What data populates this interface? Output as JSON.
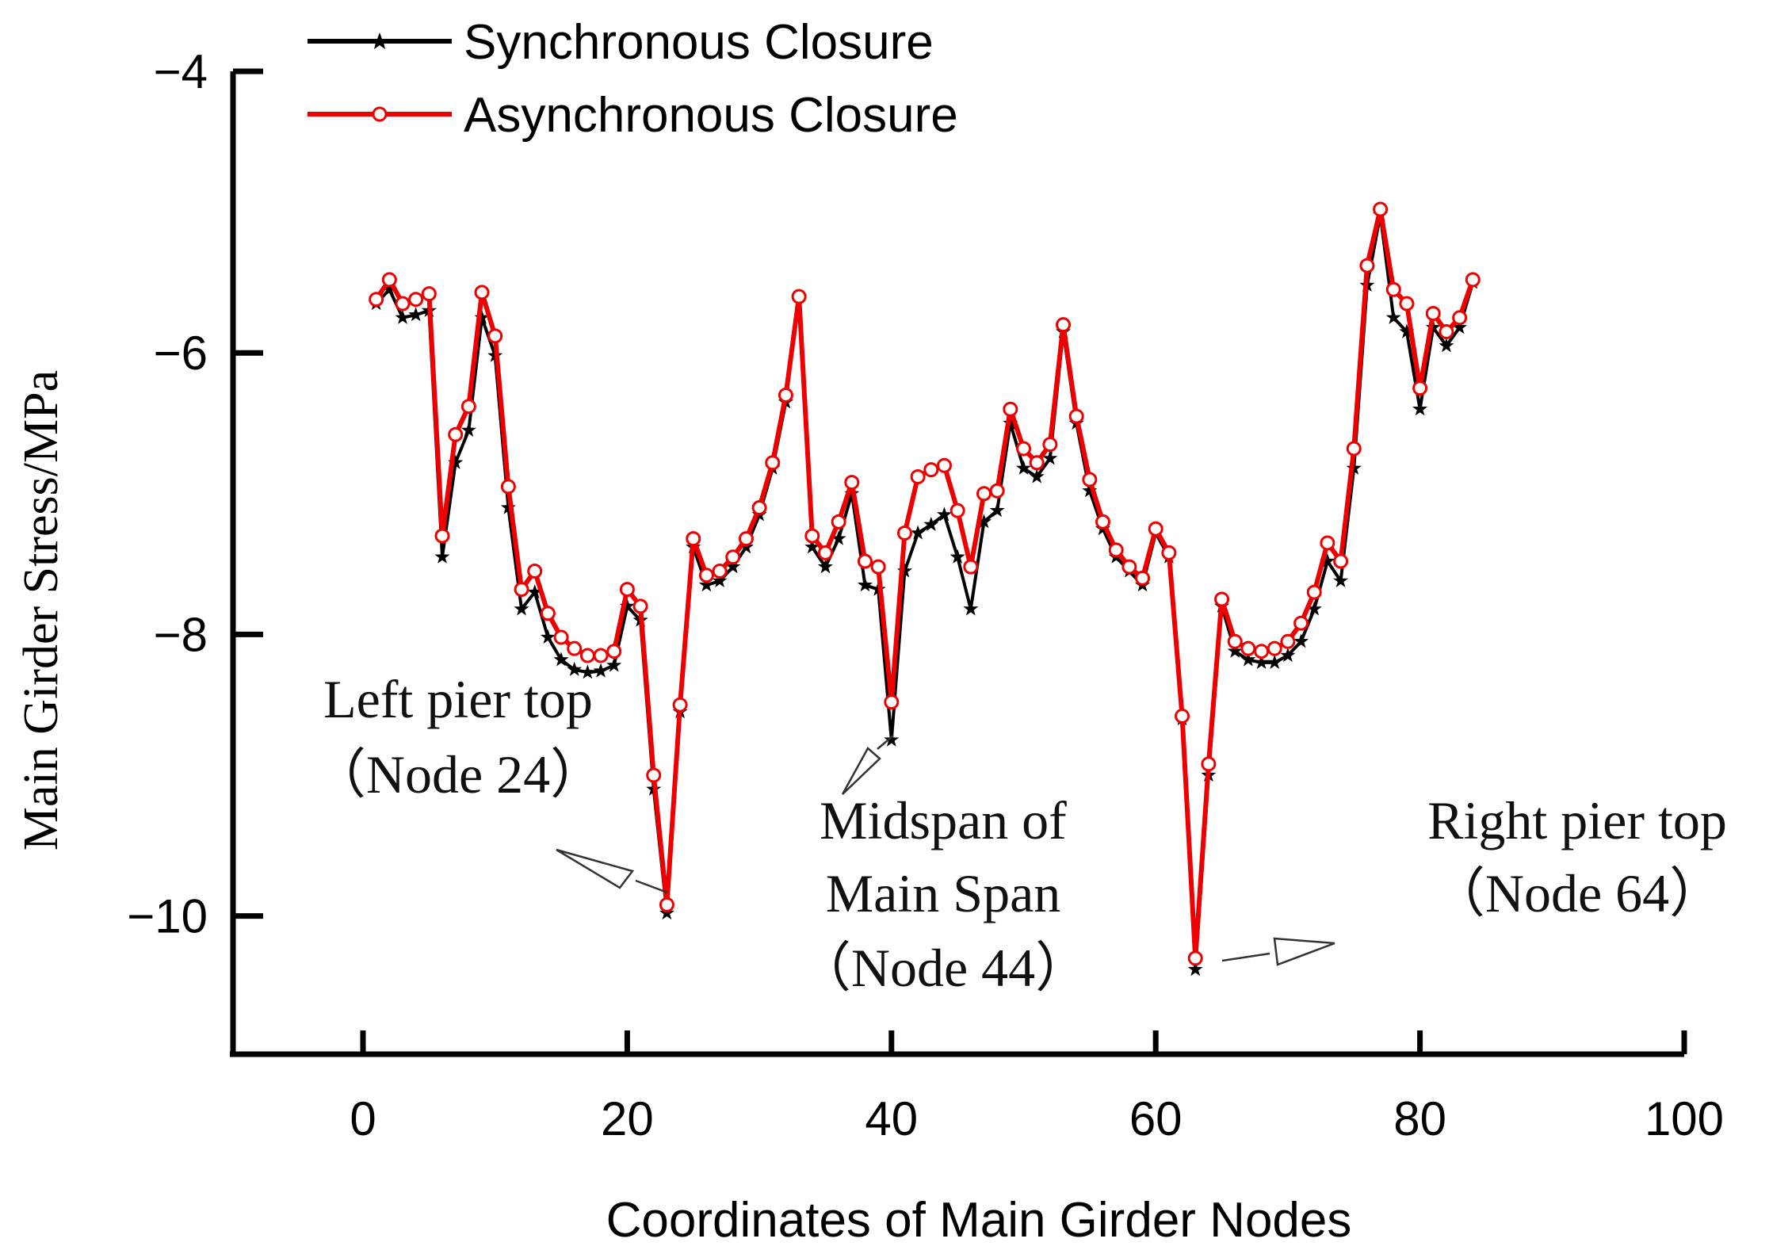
{
  "chart_data": {
    "type": "line",
    "xlabel": "Coordinates of Main Girder Nodes",
    "ylabel": "Main Girder Stress/MPa",
    "xlim": [
      -10,
      100
    ],
    "ylim": [
      -11,
      -4
    ],
    "xticks": [
      0,
      20,
      40,
      60,
      80,
      100
    ],
    "xtick_labels": [
      "0",
      "20",
      "40",
      "60",
      "80",
      "100"
    ],
    "yticks": [
      -4,
      -6,
      -8,
      -10
    ],
    "ytick_labels": [
      "−4",
      "−6",
      "−8",
      "−10"
    ],
    "grid": false,
    "legend": "top-left",
    "series": [
      {
        "name": "Synchronous Closure",
        "color": "#000000",
        "marker": "star",
        "x": [
          1,
          2,
          3,
          4,
          5,
          6,
          7,
          8,
          9,
          10,
          11,
          12,
          13,
          14,
          15,
          16,
          17,
          18,
          19,
          20,
          21,
          22,
          23,
          24,
          25,
          26,
          27,
          28,
          29,
          30,
          31,
          32,
          33,
          34,
          35,
          36,
          37,
          38,
          39,
          40,
          41,
          42,
          43,
          44,
          45,
          46,
          47,
          48,
          49,
          50,
          51,
          52,
          53,
          54,
          55,
          56,
          57,
          58,
          59,
          60,
          61,
          62,
          63,
          64,
          65,
          66,
          67,
          68,
          69,
          70,
          71,
          72,
          73,
          74,
          75,
          76,
          77,
          78,
          79,
          80,
          81,
          82,
          83,
          84
        ],
        "y": [
          -5.65,
          -5.55,
          -5.75,
          -5.73,
          -5.7,
          -7.45,
          -6.78,
          -6.55,
          -5.75,
          -6.02,
          -7.1,
          -7.82,
          -7.7,
          -8.02,
          -8.18,
          -8.25,
          -8.27,
          -8.26,
          -8.22,
          -7.8,
          -7.9,
          -9.1,
          -9.98,
          -8.55,
          -7.38,
          -7.65,
          -7.62,
          -7.52,
          -7.38,
          -7.15,
          -6.82,
          -6.35,
          -5.6,
          -7.38,
          -7.52,
          -7.32,
          -7.0,
          -7.65,
          -7.68,
          -8.75,
          -7.55,
          -7.28,
          -7.22,
          -7.15,
          -7.45,
          -7.82,
          -7.2,
          -7.12,
          -6.5,
          -6.82,
          -6.88,
          -6.75,
          -5.85,
          -6.5,
          -6.98,
          -7.25,
          -7.45,
          -7.55,
          -7.65,
          -7.28,
          -7.45,
          -8.6,
          -10.38,
          -9.0,
          -7.8,
          -8.12,
          -8.18,
          -8.2,
          -8.2,
          -8.15,
          -8.05,
          -7.82,
          -7.48,
          -7.62,
          -6.82,
          -5.52,
          -5.02,
          -5.75,
          -5.85,
          -6.4,
          -5.82,
          -5.95,
          -5.82,
          -5.5
        ]
      },
      {
        "name": "Asynchronous Closure",
        "color": "#ee0000",
        "marker": "circle",
        "x": [
          1,
          2,
          3,
          4,
          5,
          6,
          7,
          8,
          9,
          10,
          11,
          12,
          13,
          14,
          15,
          16,
          17,
          18,
          19,
          20,
          21,
          22,
          23,
          24,
          25,
          26,
          27,
          28,
          29,
          30,
          31,
          32,
          33,
          34,
          35,
          36,
          37,
          38,
          39,
          40,
          41,
          42,
          43,
          44,
          45,
          46,
          47,
          48,
          49,
          50,
          51,
          52,
          53,
          54,
          55,
          56,
          57,
          58,
          59,
          60,
          61,
          62,
          63,
          64,
          65,
          66,
          67,
          68,
          69,
          70,
          71,
          72,
          73,
          74,
          75,
          76,
          77,
          78,
          79,
          80,
          81,
          82,
          83,
          84
        ],
        "y": [
          -5.62,
          -5.48,
          -5.65,
          -5.62,
          -5.58,
          -7.3,
          -6.58,
          -6.38,
          -5.57,
          -5.88,
          -6.95,
          -7.68,
          -7.55,
          -7.85,
          -8.02,
          -8.1,
          -8.15,
          -8.15,
          -8.12,
          -7.68,
          -7.8,
          -9.0,
          -9.92,
          -8.5,
          -7.32,
          -7.58,
          -7.55,
          -7.45,
          -7.32,
          -7.1,
          -6.78,
          -6.3,
          -5.6,
          -7.3,
          -7.42,
          -7.2,
          -6.92,
          -7.48,
          -7.52,
          -8.48,
          -7.28,
          -6.88,
          -6.83,
          -6.8,
          -7.12,
          -7.52,
          -7.0,
          -6.98,
          -6.4,
          -6.68,
          -6.78,
          -6.65,
          -5.8,
          -6.45,
          -6.9,
          -7.2,
          -7.4,
          -7.52,
          -7.6,
          -7.25,
          -7.42,
          -8.58,
          -10.3,
          -8.92,
          -7.75,
          -8.05,
          -8.1,
          -8.12,
          -8.1,
          -8.05,
          -7.92,
          -7.7,
          -7.35,
          -7.48,
          -6.68,
          -5.38,
          -4.98,
          -5.55,
          -5.65,
          -6.25,
          -5.72,
          -5.85,
          -5.75,
          -5.48
        ]
      }
    ],
    "annotations": [
      {
        "lines": [
          "Left pier top",
          "（Node 24）"
        ]
      },
      {
        "lines": [
          "Midspan of",
          "Main Span",
          "（Node 44）"
        ]
      },
      {
        "lines": [
          "Right pier top",
          "（Node 64）"
        ]
      }
    ]
  }
}
